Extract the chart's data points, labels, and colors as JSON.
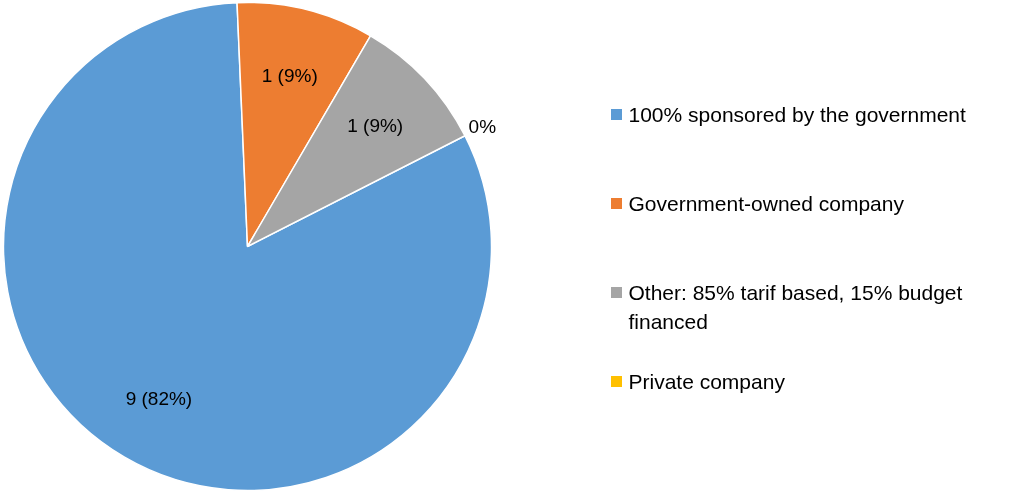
{
  "chart_data": {
    "type": "pie",
    "categories": [
      "100% sponsored by the government",
      "Government-owned company",
      "Other: 85% tarif based, 15% budget financed",
      "Private company"
    ],
    "values": [
      9,
      1,
      1,
      0
    ],
    "colors": [
      "#5b9bd5",
      "#ed7d31",
      "#a5a5a5",
      "#ffc000"
    ],
    "value_labels": [
      "9 (82%)",
      "1 (9%)",
      "1 (9%)",
      "0%"
    ],
    "legend": "right"
  }
}
